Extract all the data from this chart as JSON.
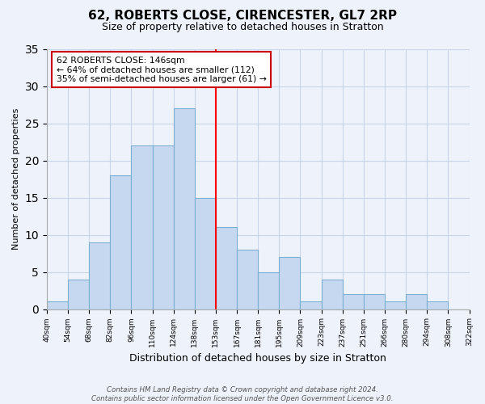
{
  "title": "62, ROBERTS CLOSE, CIRENCESTER, GL7 2RP",
  "subtitle": "Size of property relative to detached houses in Stratton",
  "xlabel": "Distribution of detached houses by size in Stratton",
  "ylabel": "Number of detached properties",
  "bin_labels": [
    "40sqm",
    "54sqm",
    "68sqm",
    "82sqm",
    "96sqm",
    "110sqm",
    "124sqm",
    "138sqm",
    "153sqm",
    "167sqm",
    "181sqm",
    "195sqm",
    "209sqm",
    "223sqm",
    "237sqm",
    "251sqm",
    "266sqm",
    "280sqm",
    "294sqm",
    "308sqm",
    "322sqm"
  ],
  "bar_values": [
    1,
    4,
    9,
    18,
    22,
    22,
    27,
    15,
    11,
    8,
    5,
    7,
    1,
    4,
    2,
    2,
    1,
    2,
    1,
    0
  ],
  "bar_color": "#c5d8f0",
  "bar_edge_color": "#7bafd4",
  "reference_line_label": "62 ROBERTS CLOSE: 146sqm",
  "annotation_line1": "← 64% of detached houses are smaller (112)",
  "annotation_line2": "35% of semi-detached houses are larger (61) →",
  "annotation_box_edge": "#cc0000",
  "ylim": [
    0,
    35
  ],
  "yticks": [
    0,
    5,
    10,
    15,
    20,
    25,
    30,
    35
  ],
  "footer_line1": "Contains HM Land Registry data © Crown copyright and database right 2024.",
  "footer_line2": "Contains public sector information licensed under the Open Government Licence v3.0.",
  "background_color": "#eef2fa"
}
